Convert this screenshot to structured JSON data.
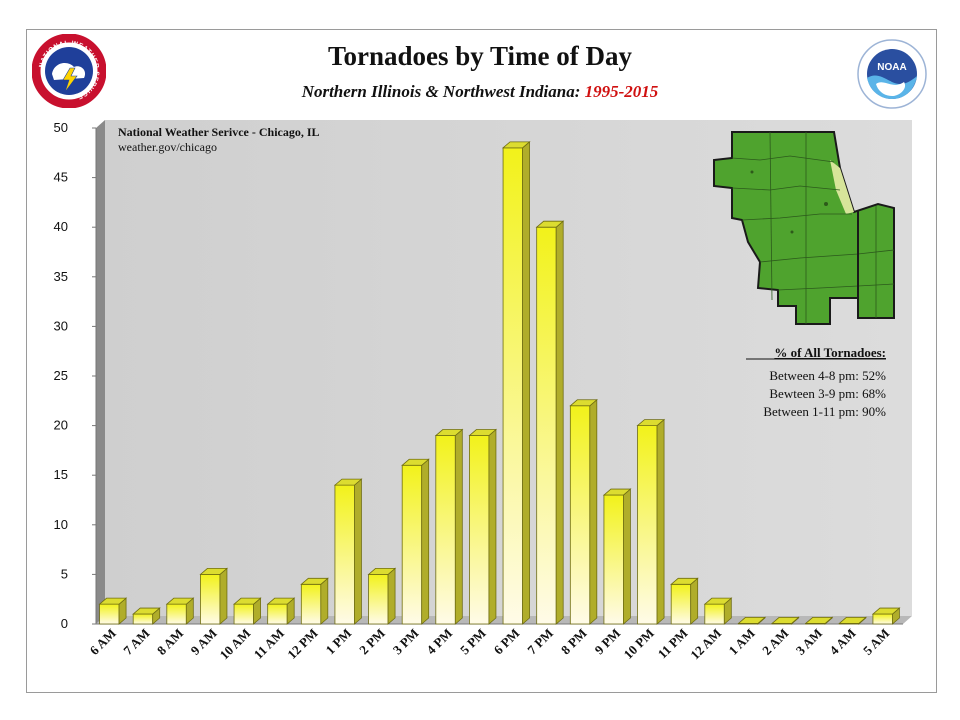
{
  "header": {
    "title": "Tornadoes by Time of Day",
    "subtitle_main": "Northern Illinois & Northwest Indiana:",
    "subtitle_years": "1995-2015"
  },
  "logos": {
    "left": {
      "icon": "nws-logo-icon",
      "text": "NATIONAL WEATHER SERVICE"
    },
    "right": {
      "icon": "noaa-logo-icon",
      "text": "NOAA"
    }
  },
  "notes": {
    "line1": "National Weather Serivce - Chicago, IL",
    "line2": "weather.gov/chicago"
  },
  "stats": {
    "heading": "% of All Tornadoes:",
    "rows": [
      {
        "label": "Between 4-8 pm:",
        "value": "52%"
      },
      {
        "label": "Bewteen 3-9 pm:",
        "value": "68%"
      },
      {
        "label": "Between 1-11 pm:",
        "value": "90%"
      }
    ]
  },
  "colors": {
    "bar_top": "#f2f21a",
    "bar_bottom": "#fffbe8",
    "bar_side": "#b0ad2a",
    "bar_cap": "#dcdc30",
    "plot_bg": "#d4d4d4",
    "map_green": "#4fa32e"
  },
  "chart_data": {
    "type": "bar",
    "title": "Tornadoes by Time of Day",
    "subtitle": "Northern Illinois & Northwest Indiana: 1995-2015",
    "categories": [
      "6 AM",
      "7 AM",
      "8 AM",
      "9 AM",
      "10 AM",
      "11 AM",
      "12 PM",
      "1 PM",
      "2 PM",
      "3 PM",
      "4 PM",
      "5 PM",
      "6 PM",
      "7 PM",
      "8 PM",
      "9 PM",
      "10 PM",
      "11 PM",
      "12 AM",
      "1 AM",
      "2 AM",
      "3 AM",
      "4 AM",
      "5 AM"
    ],
    "values": [
      2,
      1,
      2,
      5,
      2,
      2,
      4,
      14,
      5,
      16,
      19,
      19,
      48,
      40,
      22,
      13,
      20,
      4,
      2,
      0,
      0,
      0,
      0,
      1
    ],
    "ylim": [
      0,
      50
    ],
    "yticks": [
      0,
      5,
      10,
      15,
      20,
      25,
      30,
      35,
      40,
      45,
      50
    ],
    "grid": false,
    "style": "3d"
  }
}
